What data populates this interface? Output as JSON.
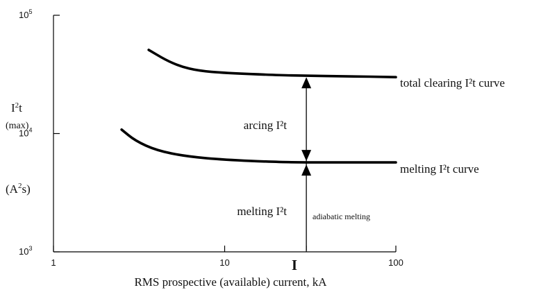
{
  "chart_data": {
    "type": "line",
    "x_scale": "log",
    "y_scale": "log",
    "xlim": [
      1,
      100
    ],
    "ylim": [
      1000,
      100000
    ],
    "x_ticks": [
      {
        "value": 1,
        "label": "1"
      },
      {
        "value": 10,
        "label": "10"
      },
      {
        "value": 100,
        "label": "100"
      }
    ],
    "y_ticks": [
      {
        "value": 1000,
        "base": "10",
        "exp": "3"
      },
      {
        "value": 10000,
        "base": "10",
        "exp": "4"
      },
      {
        "value": 100000,
        "base": "10",
        "exp": "5"
      }
    ],
    "xlabel": "RMS prospective (available) current,  kA",
    "ylabel": {
      "line1_base": "I",
      "line1_sup": "2",
      "line1_tail": "t",
      "line2": "(max)",
      "units_open": "(A",
      "units_sup": "2",
      "units_close": "s)"
    },
    "marker": {
      "x": 30,
      "label": "I"
    },
    "series": [
      {
        "name": "total clearing I²t curve",
        "points": [
          [
            3.6,
            51000
          ],
          [
            4.5,
            42000
          ],
          [
            5.5,
            37000
          ],
          [
            7,
            34000
          ],
          [
            10,
            32500
          ],
          [
            20,
            31200
          ],
          [
            30,
            30800
          ],
          [
            50,
            30500
          ],
          [
            100,
            30000
          ]
        ]
      },
      {
        "name": "melting I²t curve",
        "points": [
          [
            2.5,
            10800
          ],
          [
            3,
            8700
          ],
          [
            4,
            7200
          ],
          [
            6,
            6400
          ],
          [
            10,
            6000
          ],
          [
            20,
            5750
          ],
          [
            30,
            5700
          ],
          [
            50,
            5700
          ],
          [
            100,
            5700
          ]
        ]
      }
    ],
    "annotations": {
      "arcing": "arcing I²t",
      "melting": "melting I²t",
      "adiabatic": "adiabatic melting"
    }
  }
}
